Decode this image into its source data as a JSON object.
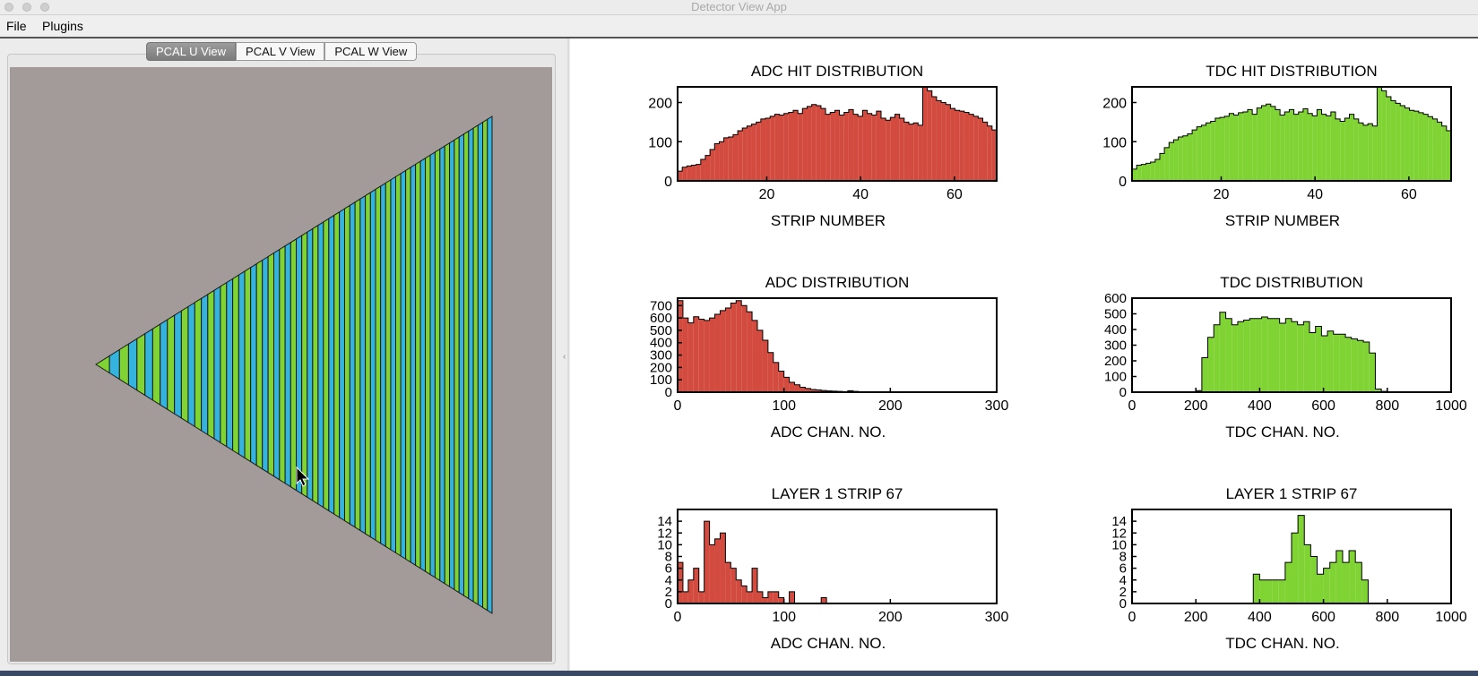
{
  "window": {
    "title": "Detector View App"
  },
  "menu": {
    "file": "File",
    "plugins": "Plugins"
  },
  "tabs": {
    "u": "PCAL U View",
    "v": "PCAL V View",
    "w": "PCAL W View",
    "selected": "PCAL U View"
  },
  "colors": {
    "adc": "#d24b3e",
    "tdc": "#7fd433",
    "strip_green": "#7fd433",
    "strip_blue": "#33b3dd",
    "canvas": "#a39b99"
  },
  "plots": [
    {
      "id": "adc-hit",
      "title": "ADC HIT DISTRIBUTION",
      "xlabel": "STRIP NUMBER",
      "color": "#d24b3e",
      "xlim": [
        1,
        69
      ],
      "ylim": [
        0,
        240
      ],
      "xticks": [
        20,
        40,
        60
      ],
      "yticks": [
        0,
        100,
        200
      ],
      "bin_edges": [
        1,
        69
      ],
      "values": [
        25,
        35,
        38,
        40,
        42,
        55,
        65,
        80,
        95,
        100,
        110,
        112,
        118,
        128,
        135,
        140,
        145,
        150,
        158,
        160,
        165,
        170,
        168,
        172,
        175,
        180,
        172,
        185,
        190,
        195,
        192,
        185,
        170,
        175,
        180,
        168,
        175,
        182,
        170,
        165,
        180,
        172,
        168,
        178,
        160,
        155,
        162,
        170,
        160,
        150,
        145,
        148,
        142,
        245,
        230,
        215,
        205,
        200,
        195,
        185,
        180,
        178,
        175,
        170,
        165,
        160,
        150,
        140,
        130
      ]
    },
    {
      "id": "tdc-hit",
      "title": "TDC HIT DISTRIBUTION",
      "xlabel": "STRIP NUMBER",
      "color": "#7fd433",
      "xlim": [
        1,
        69
      ],
      "ylim": [
        0,
        240
      ],
      "xticks": [
        20,
        40,
        60
      ],
      "yticks": [
        0,
        100,
        200
      ],
      "bin_edges": [
        1,
        69
      ],
      "values": [
        30,
        40,
        42,
        45,
        48,
        55,
        70,
        85,
        98,
        105,
        112,
        115,
        120,
        130,
        138,
        142,
        148,
        152,
        160,
        162,
        165,
        172,
        168,
        174,
        176,
        182,
        170,
        186,
        192,
        196,
        190,
        182,
        168,
        176,
        182,
        170,
        176,
        184,
        172,
        166,
        182,
        170,
        166,
        176,
        158,
        152,
        160,
        170,
        158,
        148,
        142,
        146,
        140,
        245,
        230,
        215,
        205,
        198,
        192,
        186,
        180,
        178,
        174,
        170,
        164,
        158,
        150,
        140,
        128
      ]
    },
    {
      "id": "adc-dist",
      "title": "ADC DISTRIBUTION",
      "xlabel": "ADC CHAN. NO.",
      "color": "#d24b3e",
      "xlim": [
        0,
        300
      ],
      "ylim": [
        0,
        760
      ],
      "xticks": [
        0,
        100,
        200,
        300
      ],
      "yticks": [
        0,
        100,
        200,
        300,
        400,
        500,
        600,
        700
      ],
      "bin_edges": [
        0,
        300
      ],
      "values": [
        740,
        600,
        560,
        610,
        590,
        580,
        600,
        630,
        660,
        680,
        720,
        740,
        700,
        650,
        580,
        500,
        420,
        320,
        240,
        170,
        120,
        80,
        60,
        40,
        30,
        22,
        18,
        14,
        10,
        8,
        6,
        4,
        12,
        6,
        2,
        2,
        1,
        1,
        1,
        1,
        3,
        1,
        1,
        1,
        1,
        1,
        1,
        1,
        1,
        1,
        1,
        1,
        1,
        1,
        1,
        1,
        1,
        1,
        1,
        1
      ]
    },
    {
      "id": "tdc-dist",
      "title": "TDC DISTRIBUTION",
      "xlabel": "TDC CHAN. NO.",
      "color": "#7fd433",
      "xlim": [
        0,
        1000
      ],
      "ylim": [
        0,
        600
      ],
      "xticks": [
        0,
        200,
        400,
        600,
        800,
        1000
      ],
      "yticks": [
        0,
        100,
        200,
        300,
        400,
        500,
        600
      ],
      "bin_edges": [
        200,
        800
      ],
      "values": [
        10,
        220,
        350,
        430,
        510,
        470,
        430,
        450,
        460,
        470,
        470,
        480,
        470,
        470,
        440,
        470,
        450,
        430,
        450,
        380,
        420,
        360,
        390,
        370,
        370,
        350,
        340,
        330,
        320,
        250,
        20,
        5
      ]
    },
    {
      "id": "adc-strip",
      "title": "LAYER 1 STRIP 67",
      "xlabel": "ADC CHAN. NO.",
      "color": "#d24b3e",
      "xlim": [
        0,
        300
      ],
      "ylim": [
        0,
        16
      ],
      "xticks": [
        0,
        100,
        200,
        300
      ],
      "yticks": [
        0,
        2,
        4,
        6,
        8,
        10,
        12,
        14
      ],
      "bin_edges": [
        0,
        300
      ],
      "values": [
        7,
        2,
        4,
        6,
        2,
        14,
        10,
        11,
        12,
        7,
        6,
        4,
        3,
        2,
        6,
        2,
        1,
        2,
        2,
        1,
        0,
        2,
        0,
        0,
        0,
        0,
        0,
        1,
        0,
        0,
        0,
        0,
        0,
        0,
        0,
        0,
        0,
        0,
        0,
        0,
        0,
        0,
        0,
        0,
        0,
        0,
        0,
        0,
        0,
        0,
        0,
        0,
        0,
        0,
        0,
        0,
        0,
        0,
        0,
        0
      ]
    },
    {
      "id": "tdc-strip",
      "title": "LAYER 1 STRIP 67",
      "xlabel": "TDC CHAN. NO.",
      "color": "#7fd433",
      "xlim": [
        0,
        1000
      ],
      "ylim": [
        0,
        16
      ],
      "xticks": [
        0,
        200,
        400,
        600,
        800,
        1000
      ],
      "yticks": [
        0,
        2,
        4,
        6,
        8,
        10,
        12,
        14
      ],
      "bin_edges": [
        380,
        740
      ],
      "values": [
        5,
        4,
        4,
        4,
        4,
        7,
        12,
        15,
        10,
        8,
        5,
        6,
        7,
        9,
        7,
        9,
        7,
        4
      ]
    }
  ],
  "chart_data": [
    {
      "type": "bar",
      "title": "ADC HIT DISTRIBUTION",
      "xlabel": "STRIP NUMBER",
      "ylabel": "",
      "xlim": [
        1,
        69
      ],
      "ylim": [
        0,
        240
      ],
      "series": [
        {
          "values_ref": "plots.0.values"
        }
      ]
    },
    {
      "type": "bar",
      "title": "TDC HIT DISTRIBUTION",
      "xlabel": "STRIP NUMBER",
      "ylabel": "",
      "xlim": [
        1,
        69
      ],
      "ylim": [
        0,
        240
      ]
    },
    {
      "type": "bar",
      "title": "ADC DISTRIBUTION",
      "xlabel": "ADC CHAN. NO.",
      "ylabel": "",
      "xlim": [
        0,
        300
      ],
      "ylim": [
        0,
        760
      ]
    },
    {
      "type": "bar",
      "title": "TDC DISTRIBUTION",
      "xlabel": "TDC CHAN. NO.",
      "ylabel": "",
      "xlim": [
        0,
        1000
      ],
      "ylim": [
        0,
        600
      ]
    },
    {
      "type": "bar",
      "title": "LAYER 1 STRIP 67",
      "xlabel": "ADC CHAN. NO.",
      "ylabel": "",
      "xlim": [
        0,
        300
      ],
      "ylim": [
        0,
        16
      ]
    },
    {
      "type": "bar",
      "title": "LAYER 1 STRIP 67",
      "xlabel": "TDC CHAN. NO.",
      "ylabel": "",
      "xlim": [
        0,
        1000
      ],
      "ylim": [
        0,
        16
      ]
    }
  ]
}
